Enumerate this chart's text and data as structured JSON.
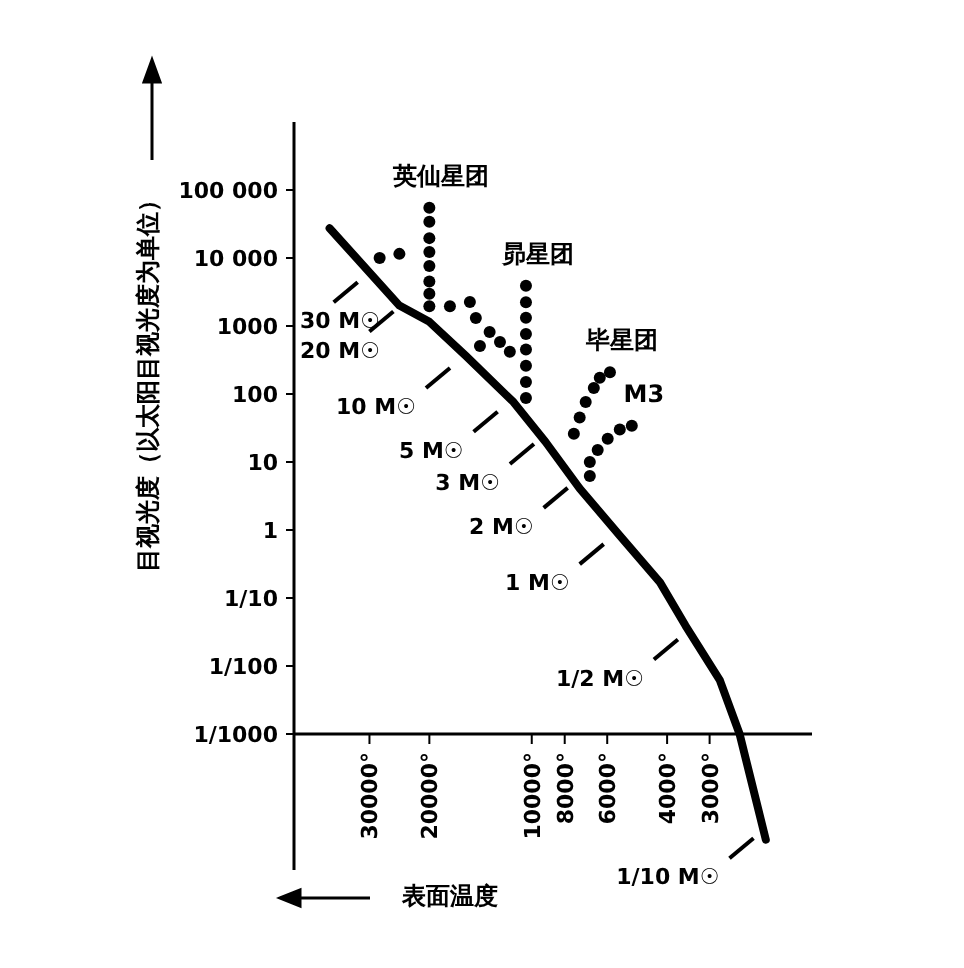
{
  "chart_data": {
    "type": "line",
    "log": "xy",
    "grid": false,
    "xlabel": "表面温度",
    "ylabel": "目视光度（以太阳目视光度为单位）",
    "xlim": [
      50000,
      1500
    ],
    "ylim": [
      1e-05,
      1000000
    ],
    "xticks": [
      {
        "value": 30000,
        "label": "30000°"
      },
      {
        "value": 20000,
        "label": "20000°"
      },
      {
        "value": 10000,
        "label": "10000°"
      },
      {
        "value": 8000,
        "label": "8000°"
      },
      {
        "value": 6000,
        "label": "6000°"
      },
      {
        "value": 4000,
        "label": "4000°"
      },
      {
        "value": 3000,
        "label": "3000°"
      }
    ],
    "yticks": [
      {
        "value": 100000,
        "label": "100 000"
      },
      {
        "value": 10000,
        "label": "10 000"
      },
      1000,
      100,
      10,
      1,
      {
        "value": 0.1,
        "label": "1/10"
      },
      {
        "value": 0.01,
        "label": "1/100"
      },
      {
        "value": 0.001,
        "label": "1/1000"
      }
    ],
    "series": [
      {
        "color": "#000000",
        "x": [
          39300,
          24500,
          20000,
          15600,
          11300,
          9100,
          7230,
          5500,
          4200,
          3530,
          2800,
          2450,
          2050
        ],
        "values": [
          27500,
          2000,
          1150,
          363,
          76,
          19.7,
          4.1,
          0.82,
          0.17,
          0.039,
          0.0062,
          0.001,
          2.8e-05
        ]
      },
      {
        "type": "scatter",
        "name": "英仙星团",
        "color": "#000000",
        "x": [
          20000,
          20000,
          20000,
          20000,
          20000,
          20000,
          20000,
          20000,
          17400,
          15200,
          14600,
          13300,
          12400,
          14200,
          11600,
          28000,
          24500
        ],
        "values": [
          55000,
          34000,
          19600,
          12300,
          7600,
          4500,
          2970,
          1950,
          1950,
          2260,
          1310,
          813,
          580,
          510,
          417,
          10000,
          11500
        ]
      },
      {
        "type": "scatter",
        "name": "昴星团",
        "color": "#000000",
        "x": [
          10400,
          10400,
          10400,
          10400,
          10400,
          10400,
          10400,
          10400
        ],
        "values": [
          3900,
          2240,
          1320,
          760,
          450,
          260,
          150,
          87
        ]
      },
      {
        "type": "scatter",
        "name": "毕星团",
        "color": "#000000",
        "x": [
          7520,
          7230,
          6940,
          6570,
          6310,
          5890
        ],
        "values": [
          26,
          45,
          76,
          123,
          174,
          209
        ]
      },
      {
        "type": "scatter",
        "name": "M3",
        "color": "#000000",
        "x": [
          6750,
          6400,
          5980,
          5510,
          5080,
          6750
        ],
        "values": [
          10,
          15,
          22,
          30,
          34,
          6.2
        ]
      }
    ],
    "annotations": [
      {
        "text": "30 M☉",
        "x": 31200,
        "y": 5400
      },
      {
        "text": "20 M☉",
        "x": 24500,
        "y": 2000
      },
      {
        "text": "10 M☉",
        "x": 16700,
        "y": 295
      },
      {
        "text": "5 M☉",
        "x": 12100,
        "y": 67
      },
      {
        "text": "3 M☉",
        "x": 9460,
        "y": 22.5
      },
      {
        "text": "2 M☉",
        "x": 7530,
        "y": 5.1
      },
      {
        "text": "1 M☉",
        "x": 5900,
        "y": 0.76
      },
      {
        "text": "1/2 M☉",
        "x": 3570,
        "y": 0.03
      },
      {
        "text": "1/10 M☉",
        "x": 2140,
        "y": 3.6e-05
      }
    ]
  }
}
